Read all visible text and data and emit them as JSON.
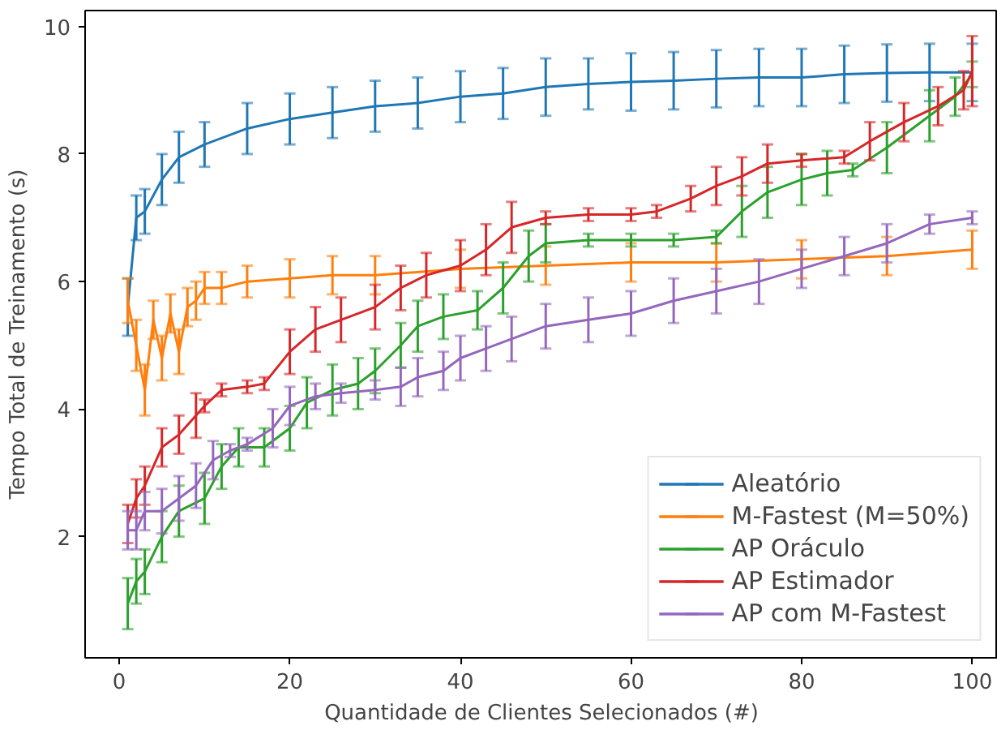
{
  "chart_data": {
    "type": "line",
    "xlabel": "Quantidade de Clientes Selecionados (#)",
    "ylabel": "Tempo Total de Treinamento (s)",
    "xlim": [
      -4,
      103
    ],
    "ylim": [
      0.1,
      10.25
    ],
    "xticks": [
      0,
      20,
      40,
      60,
      80,
      100
    ],
    "yticks": [
      2,
      4,
      6,
      8,
      10
    ],
    "grid": false,
    "legend": "bottom right",
    "marker": "none",
    "line_style": "solid",
    "series": [
      {
        "name": "Aleatório",
        "color": "#1f77b4",
        "x": [
          1,
          2,
          3,
          5,
          7,
          10,
          15,
          20,
          25,
          30,
          35,
          40,
          45,
          50,
          55,
          60,
          65,
          70,
          75,
          80,
          85,
          90,
          95,
          100
        ],
        "values": [
          5.6,
          7.0,
          7.1,
          7.6,
          7.95,
          8.15,
          8.4,
          8.55,
          8.65,
          8.75,
          8.8,
          8.9,
          8.95,
          9.05,
          9.1,
          9.13,
          9.15,
          9.18,
          9.2,
          9.2,
          9.25,
          9.27,
          9.28,
          9.28
        ],
        "errors": [
          0.45,
          0.35,
          0.35,
          0.4,
          0.4,
          0.35,
          0.4,
          0.4,
          0.4,
          0.4,
          0.4,
          0.4,
          0.4,
          0.45,
          0.4,
          0.45,
          0.45,
          0.45,
          0.45,
          0.45,
          0.45,
          0.45,
          0.45,
          0.45
        ]
      },
      {
        "name": "M-Fastest (M=50%)",
        "color": "#ff7f0e",
        "x": [
          1,
          2,
          3,
          4,
          5,
          6,
          7,
          8,
          9,
          10,
          12,
          15,
          20,
          25,
          30,
          40,
          50,
          60,
          70,
          80,
          90,
          100
        ],
        "values": [
          5.7,
          5.0,
          4.3,
          5.4,
          4.8,
          5.5,
          4.9,
          5.6,
          5.7,
          5.9,
          5.9,
          6.0,
          6.05,
          6.1,
          6.1,
          6.2,
          6.25,
          6.3,
          6.3,
          6.35,
          6.4,
          6.5
        ],
        "errors": [
          0.35,
          0.4,
          0.4,
          0.3,
          0.35,
          0.3,
          0.35,
          0.3,
          0.3,
          0.25,
          0.25,
          0.25,
          0.3,
          0.3,
          0.3,
          0.3,
          0.3,
          0.3,
          0.3,
          0.3,
          0.3,
          0.3
        ]
      },
      {
        "name": "AP Oráculo",
        "color": "#2ca02c",
        "x": [
          1,
          2,
          3,
          5,
          7,
          10,
          12,
          14,
          17,
          20,
          22,
          25,
          28,
          30,
          33,
          35,
          38,
          42,
          45,
          48,
          50,
          55,
          60,
          65,
          70,
          73,
          76,
          80,
          83,
          86,
          90,
          95,
          98,
          100
        ],
        "values": [
          0.95,
          1.3,
          1.45,
          2.0,
          2.4,
          2.6,
          3.1,
          3.4,
          3.4,
          3.7,
          4.1,
          4.3,
          4.4,
          4.6,
          5.0,
          5.3,
          5.45,
          5.55,
          5.9,
          6.4,
          6.6,
          6.65,
          6.65,
          6.65,
          6.7,
          7.1,
          7.4,
          7.6,
          7.7,
          7.75,
          8.1,
          8.6,
          8.9,
          9.25
        ],
        "errors": [
          0.4,
          0.35,
          0.35,
          0.4,
          0.4,
          0.4,
          0.35,
          0.3,
          0.3,
          0.35,
          0.4,
          0.4,
          0.4,
          0.35,
          0.35,
          0.4,
          0.35,
          0.3,
          0.4,
          0.4,
          0.3,
          0.1,
          0.1,
          0.1,
          0.1,
          0.4,
          0.4,
          0.4,
          0.35,
          0.1,
          0.4,
          0.4,
          0.3,
          0.2
        ]
      },
      {
        "name": "AP Estimador",
        "color": "#d62728",
        "x": [
          1,
          2,
          3,
          5,
          7,
          9,
          10,
          12,
          15,
          17,
          20,
          23,
          26,
          30,
          33,
          36,
          40,
          43,
          46,
          50,
          55,
          60,
          63,
          67,
          70,
          73,
          76,
          80,
          85,
          88,
          92,
          96,
          99,
          100
        ],
        "values": [
          2.2,
          2.6,
          2.8,
          3.4,
          3.6,
          3.9,
          4.05,
          4.3,
          4.35,
          4.4,
          4.9,
          5.25,
          5.4,
          5.6,
          5.9,
          6.1,
          6.25,
          6.5,
          6.85,
          7.0,
          7.05,
          7.05,
          7.1,
          7.3,
          7.5,
          7.65,
          7.85,
          7.9,
          7.95,
          8.2,
          8.5,
          8.75,
          9.0,
          9.3
        ],
        "errors": [
          0.3,
          0.3,
          0.3,
          0.3,
          0.3,
          0.35,
          0.1,
          0.1,
          0.1,
          0.1,
          0.35,
          0.35,
          0.35,
          0.35,
          0.35,
          0.35,
          0.4,
          0.4,
          0.4,
          0.1,
          0.1,
          0.1,
          0.1,
          0.2,
          0.3,
          0.3,
          0.3,
          0.1,
          0.1,
          0.3,
          0.3,
          0.3,
          0.3,
          0.55
        ]
      },
      {
        "name": "AP com M-Fastest",
        "color": "#9467bd",
        "x": [
          1,
          2,
          3,
          5,
          7,
          9,
          11,
          13,
          15,
          18,
          20,
          23,
          26,
          30,
          33,
          35,
          38,
          40,
          43,
          46,
          50,
          55,
          60,
          65,
          70,
          75,
          80,
          85,
          90,
          95,
          100
        ],
        "values": [
          2.1,
          2.1,
          2.4,
          2.4,
          2.6,
          2.8,
          3.2,
          3.35,
          3.45,
          3.7,
          4.05,
          4.2,
          4.25,
          4.3,
          4.35,
          4.5,
          4.6,
          4.8,
          4.95,
          5.1,
          5.3,
          5.4,
          5.5,
          5.7,
          5.85,
          6.0,
          6.2,
          6.4,
          6.6,
          6.9,
          7.0
        ],
        "errors": [
          0.3,
          0.3,
          0.3,
          0.35,
          0.35,
          0.35,
          0.3,
          0.1,
          0.1,
          0.3,
          0.3,
          0.2,
          0.15,
          0.15,
          0.3,
          0.3,
          0.3,
          0.35,
          0.35,
          0.35,
          0.35,
          0.35,
          0.35,
          0.35,
          0.35,
          0.35,
          0.3,
          0.3,
          0.3,
          0.15,
          0.1
        ]
      }
    ]
  }
}
